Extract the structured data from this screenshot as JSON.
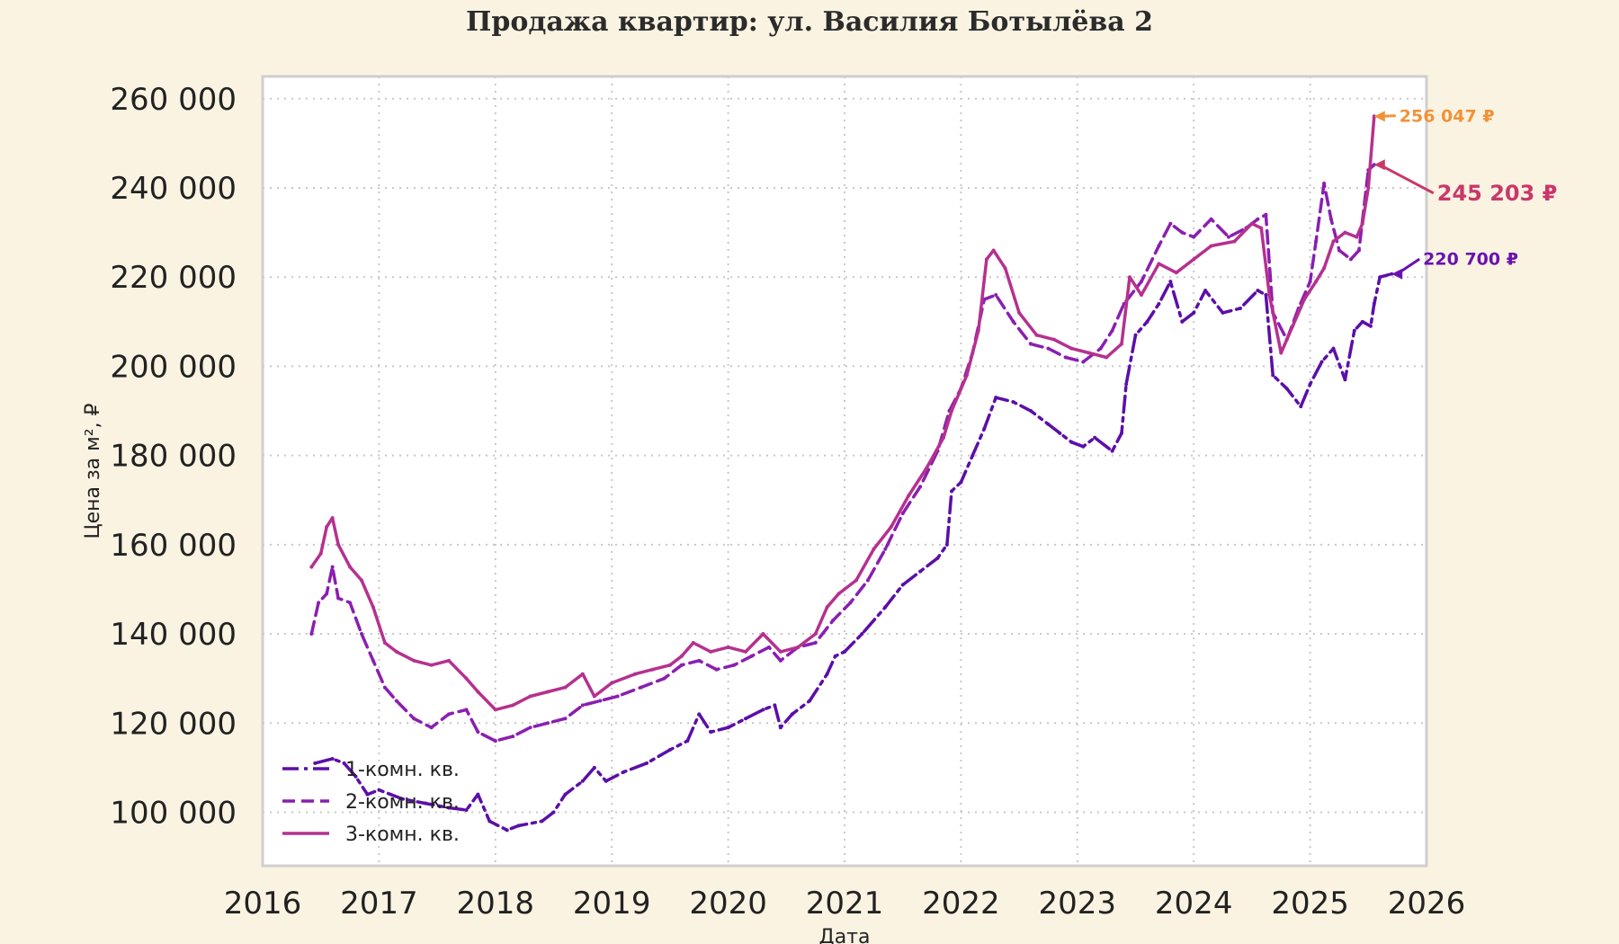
{
  "chart_data": {
    "type": "line",
    "title": "Продажа квартир: ул. Василия Ботылёва 2",
    "xlabel": "Дата",
    "ylabel": "Цена за м², ₽",
    "xlim": [
      2016,
      2026
    ],
    "ylim": [
      88000,
      265000
    ],
    "xticks": [
      2016,
      2017,
      2018,
      2019,
      2020,
      2021,
      2022,
      2023,
      2024,
      2025,
      2026
    ],
    "xtick_labels": [
      "2016",
      "2017",
      "2018",
      "2019",
      "2020",
      "2021",
      "2022",
      "2023",
      "2024",
      "2025",
      "2026"
    ],
    "yticks": [
      100000,
      120000,
      140000,
      160000,
      180000,
      200000,
      220000,
      240000,
      260000
    ],
    "ytick_labels": [
      "100 000",
      "120 000",
      "140 000",
      "160 000",
      "180 000",
      "200 000",
      "220 000",
      "240 000",
      "260 000"
    ],
    "grid": true,
    "legend_position": "bottom-left",
    "series": [
      {
        "name": "1-комн. кв.",
        "color": "#5b0fa8",
        "style": "dash-dot",
        "points": [
          [
            2016.45,
            111000
          ],
          [
            2016.6,
            112000
          ],
          [
            2016.7,
            111000
          ],
          [
            2016.8,
            108000
          ],
          [
            2016.9,
            104000
          ],
          [
            2017.0,
            105000
          ],
          [
            2017.2,
            103000
          ],
          [
            2017.4,
            102000
          ],
          [
            2017.6,
            101000
          ],
          [
            2017.75,
            100500
          ],
          [
            2017.85,
            104000
          ],
          [
            2017.95,
            98000
          ],
          [
            2018.1,
            96000
          ],
          [
            2018.2,
            97000
          ],
          [
            2018.4,
            98000
          ],
          [
            2018.5,
            100000
          ],
          [
            2018.6,
            104000
          ],
          [
            2018.75,
            107000
          ],
          [
            2018.85,
            110000
          ],
          [
            2018.95,
            107000
          ],
          [
            2019.1,
            109000
          ],
          [
            2019.3,
            111000
          ],
          [
            2019.5,
            114000
          ],
          [
            2019.65,
            116000
          ],
          [
            2019.75,
            122000
          ],
          [
            2019.85,
            118000
          ],
          [
            2020.0,
            119000
          ],
          [
            2020.15,
            121000
          ],
          [
            2020.3,
            123000
          ],
          [
            2020.4,
            124000
          ],
          [
            2020.45,
            119000
          ],
          [
            2020.55,
            122000
          ],
          [
            2020.7,
            125000
          ],
          [
            2020.85,
            131000
          ],
          [
            2020.92,
            135000
          ],
          [
            2021.0,
            136000
          ],
          [
            2021.15,
            140000
          ],
          [
            2021.35,
            146000
          ],
          [
            2021.5,
            151000
          ],
          [
            2021.65,
            154000
          ],
          [
            2021.8,
            157000
          ],
          [
            2021.88,
            160000
          ],
          [
            2021.92,
            172000
          ],
          [
            2022.0,
            174000
          ],
          [
            2022.1,
            180000
          ],
          [
            2022.2,
            186000
          ],
          [
            2022.3,
            193000
          ],
          [
            2022.45,
            192000
          ],
          [
            2022.6,
            190000
          ],
          [
            2022.75,
            187000
          ],
          [
            2022.85,
            185000
          ],
          [
            2022.95,
            183000
          ],
          [
            2023.05,
            182000
          ],
          [
            2023.15,
            184000
          ],
          [
            2023.3,
            181000
          ],
          [
            2023.38,
            185000
          ],
          [
            2023.42,
            196000
          ],
          [
            2023.5,
            207000
          ],
          [
            2023.6,
            210000
          ],
          [
            2023.7,
            214000
          ],
          [
            2023.8,
            219000
          ],
          [
            2023.9,
            210000
          ],
          [
            2024.0,
            212000
          ],
          [
            2024.1,
            217000
          ],
          [
            2024.25,
            212000
          ],
          [
            2024.4,
            213000
          ],
          [
            2024.55,
            217000
          ],
          [
            2024.62,
            216000
          ],
          [
            2024.68,
            198000
          ],
          [
            2024.8,
            195000
          ],
          [
            2024.92,
            191000
          ],
          [
            2025.0,
            196000
          ],
          [
            2025.1,
            201000
          ],
          [
            2025.2,
            204000
          ],
          [
            2025.3,
            197000
          ],
          [
            2025.38,
            208000
          ],
          [
            2025.45,
            210000
          ],
          [
            2025.52,
            209000
          ],
          [
            2025.55,
            214000
          ],
          [
            2025.6,
            220000
          ],
          [
            2025.7,
            220700
          ]
        ]
      },
      {
        "name": "2-комн. кв.",
        "color": "#8a1fb0",
        "style": "dashed",
        "points": [
          [
            2016.42,
            140000
          ],
          [
            2016.48,
            147000
          ],
          [
            2016.55,
            149000
          ],
          [
            2016.6,
            155000
          ],
          [
            2016.65,
            148000
          ],
          [
            2016.75,
            147000
          ],
          [
            2016.85,
            140000
          ],
          [
            2016.95,
            134000
          ],
          [
            2017.05,
            128000
          ],
          [
            2017.15,
            125000
          ],
          [
            2017.3,
            121000
          ],
          [
            2017.45,
            119000
          ],
          [
            2017.6,
            122000
          ],
          [
            2017.75,
            123000
          ],
          [
            2017.85,
            118000
          ],
          [
            2018.0,
            116000
          ],
          [
            2018.15,
            117000
          ],
          [
            2018.3,
            119000
          ],
          [
            2018.45,
            120000
          ],
          [
            2018.6,
            121000
          ],
          [
            2018.75,
            124000
          ],
          [
            2018.9,
            125000
          ],
          [
            2019.05,
            126000
          ],
          [
            2019.25,
            128000
          ],
          [
            2019.45,
            130000
          ],
          [
            2019.6,
            133000
          ],
          [
            2019.75,
            134000
          ],
          [
            2019.9,
            132000
          ],
          [
            2020.05,
            133000
          ],
          [
            2020.2,
            135000
          ],
          [
            2020.35,
            137000
          ],
          [
            2020.45,
            134000
          ],
          [
            2020.6,
            137000
          ],
          [
            2020.75,
            138000
          ],
          [
            2020.9,
            143000
          ],
          [
            2021.05,
            147000
          ],
          [
            2021.2,
            152000
          ],
          [
            2021.35,
            159000
          ],
          [
            2021.5,
            167000
          ],
          [
            2021.65,
            173000
          ],
          [
            2021.8,
            181000
          ],
          [
            2021.9,
            190000
          ],
          [
            2022.0,
            195000
          ],
          [
            2022.1,
            203000
          ],
          [
            2022.2,
            215000
          ],
          [
            2022.3,
            216000
          ],
          [
            2022.45,
            210000
          ],
          [
            2022.6,
            205000
          ],
          [
            2022.75,
            204000
          ],
          [
            2022.9,
            202000
          ],
          [
            2023.05,
            201000
          ],
          [
            2023.2,
            204000
          ],
          [
            2023.3,
            208000
          ],
          [
            2023.4,
            214000
          ],
          [
            2023.55,
            219000
          ],
          [
            2023.7,
            227000
          ],
          [
            2023.8,
            232000
          ],
          [
            2023.9,
            230000
          ],
          [
            2024.0,
            229000
          ],
          [
            2024.15,
            233000
          ],
          [
            2024.3,
            229000
          ],
          [
            2024.45,
            231000
          ],
          [
            2024.55,
            233000
          ],
          [
            2024.62,
            234000
          ],
          [
            2024.68,
            212000
          ],
          [
            2024.8,
            206000
          ],
          [
            2024.9,
            213000
          ],
          [
            2025.0,
            219000
          ],
          [
            2025.05,
            228000
          ],
          [
            2025.12,
            241000
          ],
          [
            2025.18,
            233000
          ],
          [
            2025.25,
            226000
          ],
          [
            2025.35,
            224000
          ],
          [
            2025.42,
            226000
          ],
          [
            2025.5,
            244000
          ],
          [
            2025.55,
            245203
          ]
        ]
      },
      {
        "name": "3-комн. кв.",
        "color": "#b5318f",
        "style": "solid",
        "points": [
          [
            2016.42,
            155000
          ],
          [
            2016.5,
            158000
          ],
          [
            2016.55,
            164000
          ],
          [
            2016.6,
            166000
          ],
          [
            2016.65,
            160000
          ],
          [
            2016.75,
            155000
          ],
          [
            2016.85,
            152000
          ],
          [
            2016.95,
            146000
          ],
          [
            2017.05,
            138000
          ],
          [
            2017.15,
            136000
          ],
          [
            2017.3,
            134000
          ],
          [
            2017.45,
            133000
          ],
          [
            2017.6,
            134000
          ],
          [
            2017.75,
            130000
          ],
          [
            2017.85,
            127000
          ],
          [
            2018.0,
            123000
          ],
          [
            2018.15,
            124000
          ],
          [
            2018.3,
            126000
          ],
          [
            2018.45,
            127000
          ],
          [
            2018.6,
            128000
          ],
          [
            2018.75,
            131000
          ],
          [
            2018.85,
            126000
          ],
          [
            2019.0,
            129000
          ],
          [
            2019.2,
            131000
          ],
          [
            2019.35,
            132000
          ],
          [
            2019.5,
            133000
          ],
          [
            2019.6,
            135000
          ],
          [
            2019.7,
            138000
          ],
          [
            2019.85,
            136000
          ],
          [
            2020.0,
            137000
          ],
          [
            2020.15,
            136000
          ],
          [
            2020.3,
            140000
          ],
          [
            2020.45,
            136000
          ],
          [
            2020.6,
            137000
          ],
          [
            2020.75,
            140000
          ],
          [
            2020.85,
            146000
          ],
          [
            2020.95,
            149000
          ],
          [
            2021.1,
            152000
          ],
          [
            2021.25,
            159000
          ],
          [
            2021.4,
            164000
          ],
          [
            2021.55,
            171000
          ],
          [
            2021.7,
            177000
          ],
          [
            2021.85,
            184000
          ],
          [
            2021.92,
            190000
          ],
          [
            2022.05,
            198000
          ],
          [
            2022.15,
            208000
          ],
          [
            2022.22,
            224000
          ],
          [
            2022.28,
            226000
          ],
          [
            2022.38,
            222000
          ],
          [
            2022.5,
            212000
          ],
          [
            2022.65,
            207000
          ],
          [
            2022.8,
            206000
          ],
          [
            2022.95,
            204000
          ],
          [
            2023.1,
            203000
          ],
          [
            2023.25,
            202000
          ],
          [
            2023.38,
            205000
          ],
          [
            2023.45,
            220000
          ],
          [
            2023.55,
            216000
          ],
          [
            2023.7,
            223000
          ],
          [
            2023.85,
            221000
          ],
          [
            2024.0,
            224000
          ],
          [
            2024.15,
            227000
          ],
          [
            2024.35,
            228000
          ],
          [
            2024.5,
            232000
          ],
          [
            2024.58,
            231000
          ],
          [
            2024.65,
            216000
          ],
          [
            2024.75,
            203000
          ],
          [
            2024.85,
            209000
          ],
          [
            2024.95,
            215000
          ],
          [
            2025.05,
            219000
          ],
          [
            2025.12,
            222000
          ],
          [
            2025.2,
            228000
          ],
          [
            2025.3,
            230000
          ],
          [
            2025.4,
            229000
          ],
          [
            2025.45,
            232000
          ],
          [
            2025.5,
            240000
          ],
          [
            2025.55,
            256047
          ]
        ]
      }
    ],
    "annotations": [
      {
        "text": "256 047 ₽",
        "x": 2025.55,
        "y": 256047,
        "color": "#f0923a"
      },
      {
        "text": "245 203 ₽",
        "x": 2025.55,
        "y": 245203,
        "color": "#c8386a"
      },
      {
        "text": "220 700 ₽",
        "x": 2025.7,
        "y": 220700,
        "color": "#6a12b0"
      }
    ]
  }
}
